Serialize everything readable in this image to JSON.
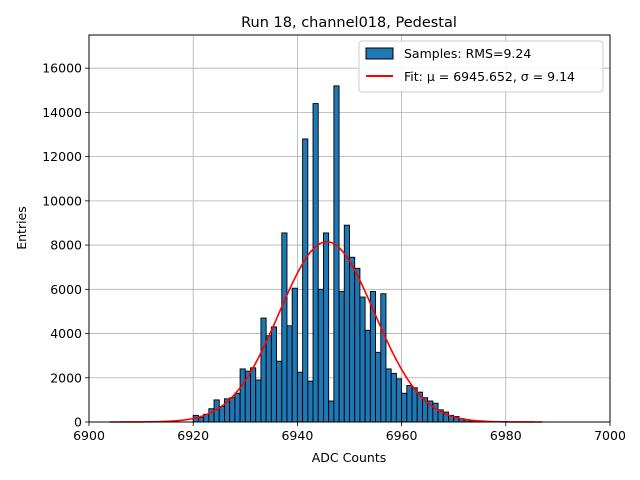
{
  "chart_data": {
    "type": "bar",
    "title": "Run 18, channel018, Pedestal",
    "xlabel": "ADC Counts",
    "ylabel": "Entries",
    "xlim": [
      6900,
      7000
    ],
    "ylim": [
      0,
      17500
    ],
    "xticks": [
      6900,
      6920,
      6940,
      6960,
      6980,
      7000
    ],
    "yticks": [
      0,
      2000,
      4000,
      6000,
      8000,
      10000,
      12000,
      14000,
      16000
    ],
    "grid": true,
    "legend_position": "top-right",
    "bin_width": 1,
    "bins_start": [
      6920,
      6921,
      6922,
      6923,
      6924,
      6925,
      6926,
      6927,
      6928,
      6929,
      6930,
      6931,
      6932,
      6933,
      6934,
      6935,
      6936,
      6937,
      6938,
      6939,
      6940,
      6941,
      6942,
      6943,
      6944,
      6945,
      6946,
      6947,
      6948,
      6949,
      6950,
      6951,
      6952,
      6953,
      6954,
      6955,
      6956,
      6957,
      6958,
      6959,
      6960,
      6961,
      6962,
      6963,
      6964,
      6965,
      6966,
      6967,
      6968,
      6969,
      6970,
      6971,
      6972,
      6973,
      6974
    ],
    "counts": [
      300,
      200,
      350,
      600,
      1000,
      700,
      1050,
      1100,
      1300,
      2400,
      2300,
      2450,
      1900,
      4700,
      3900,
      4300,
      2750,
      8550,
      4350,
      6050,
      2250,
      12800,
      1850,
      14400,
      6000,
      8550,
      950,
      15200,
      5900,
      8900,
      7450,
      6950,
      5650,
      4150,
      5900,
      3150,
      5800,
      2400,
      2200,
      1950,
      1300,
      1650,
      1550,
      1350,
      1100,
      950,
      850,
      550,
      450,
      300,
      250,
      150,
      100,
      50,
      20
    ],
    "series": [
      {
        "name": "Samples: RMS=9.24",
        "kind": "histogram",
        "color": "#1f77b4",
        "edgecolor": "#000000"
      },
      {
        "name": "Fit: μ = 6945.652, σ = 9.14",
        "kind": "gaussian-line",
        "color": "#ff0000",
        "mu": 6945.652,
        "sigma": 9.14,
        "amplitude": 8150,
        "x_range": [
          6904,
          6987
        ]
      }
    ]
  }
}
